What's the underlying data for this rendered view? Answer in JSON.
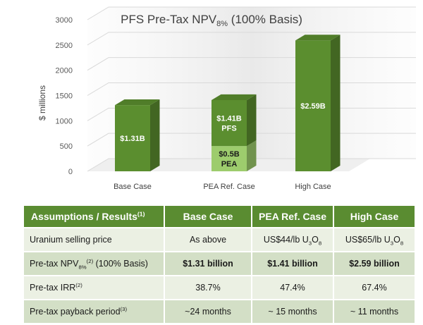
{
  "chart_data": {
    "type": "bar",
    "title": "PFS Pre-Tax NPV",
    "title_sub": "8%",
    "title_suffix": " (100% Basis)",
    "ylabel": "$ millions",
    "xlabel": "",
    "ylim": [
      0,
      3000
    ],
    "yticks": [
      0,
      500,
      1000,
      1500,
      2000,
      2500,
      3000
    ],
    "categories": [
      "Base Case",
      "PEA Ref. Case",
      "High Case"
    ],
    "series": [
      {
        "name": "PFS",
        "values": [
          1310,
          910,
          2590
        ],
        "color": "#5b8e2f"
      },
      {
        "name": "PEA",
        "values": [
          0,
          500,
          0
        ],
        "color": "#9dcc6d"
      }
    ],
    "data_labels": [
      {
        "lines": [
          "$1.31B"
        ]
      },
      {
        "lines": [
          "$1.41B",
          "PFS"
        ],
        "lower_lines": [
          "$0.5B",
          "PEA"
        ]
      },
      {
        "lines": [
          "$2.59B"
        ]
      }
    ],
    "grid": true,
    "legend": "none"
  },
  "table": {
    "header": {
      "col0": "Assumptions / Results",
      "col0_sup": "(1)",
      "col1": "Base Case",
      "col2": "PEA Ref. Case",
      "col3": "High Case"
    },
    "rows": [
      {
        "c0": "Uranium selling price",
        "c1": "As above",
        "c2_pre": "US$44/lb U",
        "c2_sub1": "3",
        "c2_mid": "O",
        "c2_sub2": "8",
        "c3_pre": "US$65/lb U",
        "c3_sub1": "3",
        "c3_mid": "O",
        "c3_sub2": "8"
      },
      {
        "c0_pre": "Pre-tax NPV",
        "c0_sub": "8%",
        "c0_sup": "(2)",
        "c0_post": " (100% Basis)",
        "c1": "$1.31 billion",
        "c2": "$1.41 billion",
        "c3": "$2.59 billion"
      },
      {
        "c0_pre": "Pre-tax IRR",
        "c0_sup": "(2)",
        "c1": "38.7%",
        "c2": "47.4%",
        "c3": "67.4%"
      },
      {
        "c0_pre": "Pre-tax payback period",
        "c0_sup": "(3)",
        "c1": "~24 months",
        "c2": "~ 15 months",
        "c3": "~ 11 months"
      }
    ]
  }
}
